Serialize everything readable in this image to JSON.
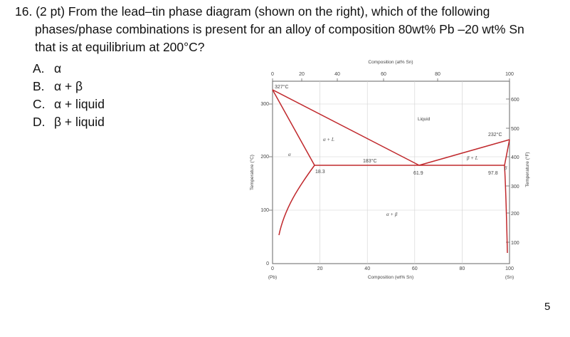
{
  "question": {
    "line1": "16. (2 pt) From the lead–tin phase diagram (shown on the right), which of the following",
    "line2": "phases/phase combinations is present for an alloy of composition 80wt% Pb –20 wt% Sn",
    "line3": "that is at equilibrium at 200°C?"
  },
  "choices": [
    {
      "letter": "A.",
      "text": "α"
    },
    {
      "letter": "B.",
      "text": "α + β"
    },
    {
      "letter": "C.",
      "text": "α + liquid"
    },
    {
      "letter": "D.",
      "text": "β + liquid"
    }
  ],
  "page_number": "5",
  "diagram": {
    "top_axis_title": "Composition (at% Sn)",
    "top_ticks": [
      "0",
      "20",
      "40",
      "60",
      "80",
      "100"
    ],
    "bottom_axis_title": "Composition (wt% Sn)",
    "bottom_ticks": [
      "0",
      "20",
      "40",
      "60",
      "80",
      "100"
    ],
    "bottom_end_left": "(Pb)",
    "bottom_end_right": "(Sn)",
    "left_axis_title": "Temperature (°C)",
    "left_ticks": [
      "0",
      "100",
      "200",
      "300"
    ],
    "right_axis_title": "Temperature (°F)",
    "right_ticks": [
      "100",
      "200",
      "300",
      "400",
      "500",
      "600"
    ],
    "annotations": {
      "pb_melt": "327°C",
      "sn_melt": "232°C",
      "eutectic_temp": "183°C",
      "alpha_limit": "18.3",
      "eutectic_comp": "61.9",
      "beta_limit": "97.8",
      "liquid": "Liquid",
      "alpha_plus_l": "α + L",
      "beta_plus_l": "β + L",
      "alpha_plus_beta": "α + β",
      "alpha": "α",
      "beta": "β"
    },
    "colors": {
      "boundary": "#c0282c",
      "grid": "#c8c8c8",
      "axis": "#666666"
    }
  }
}
